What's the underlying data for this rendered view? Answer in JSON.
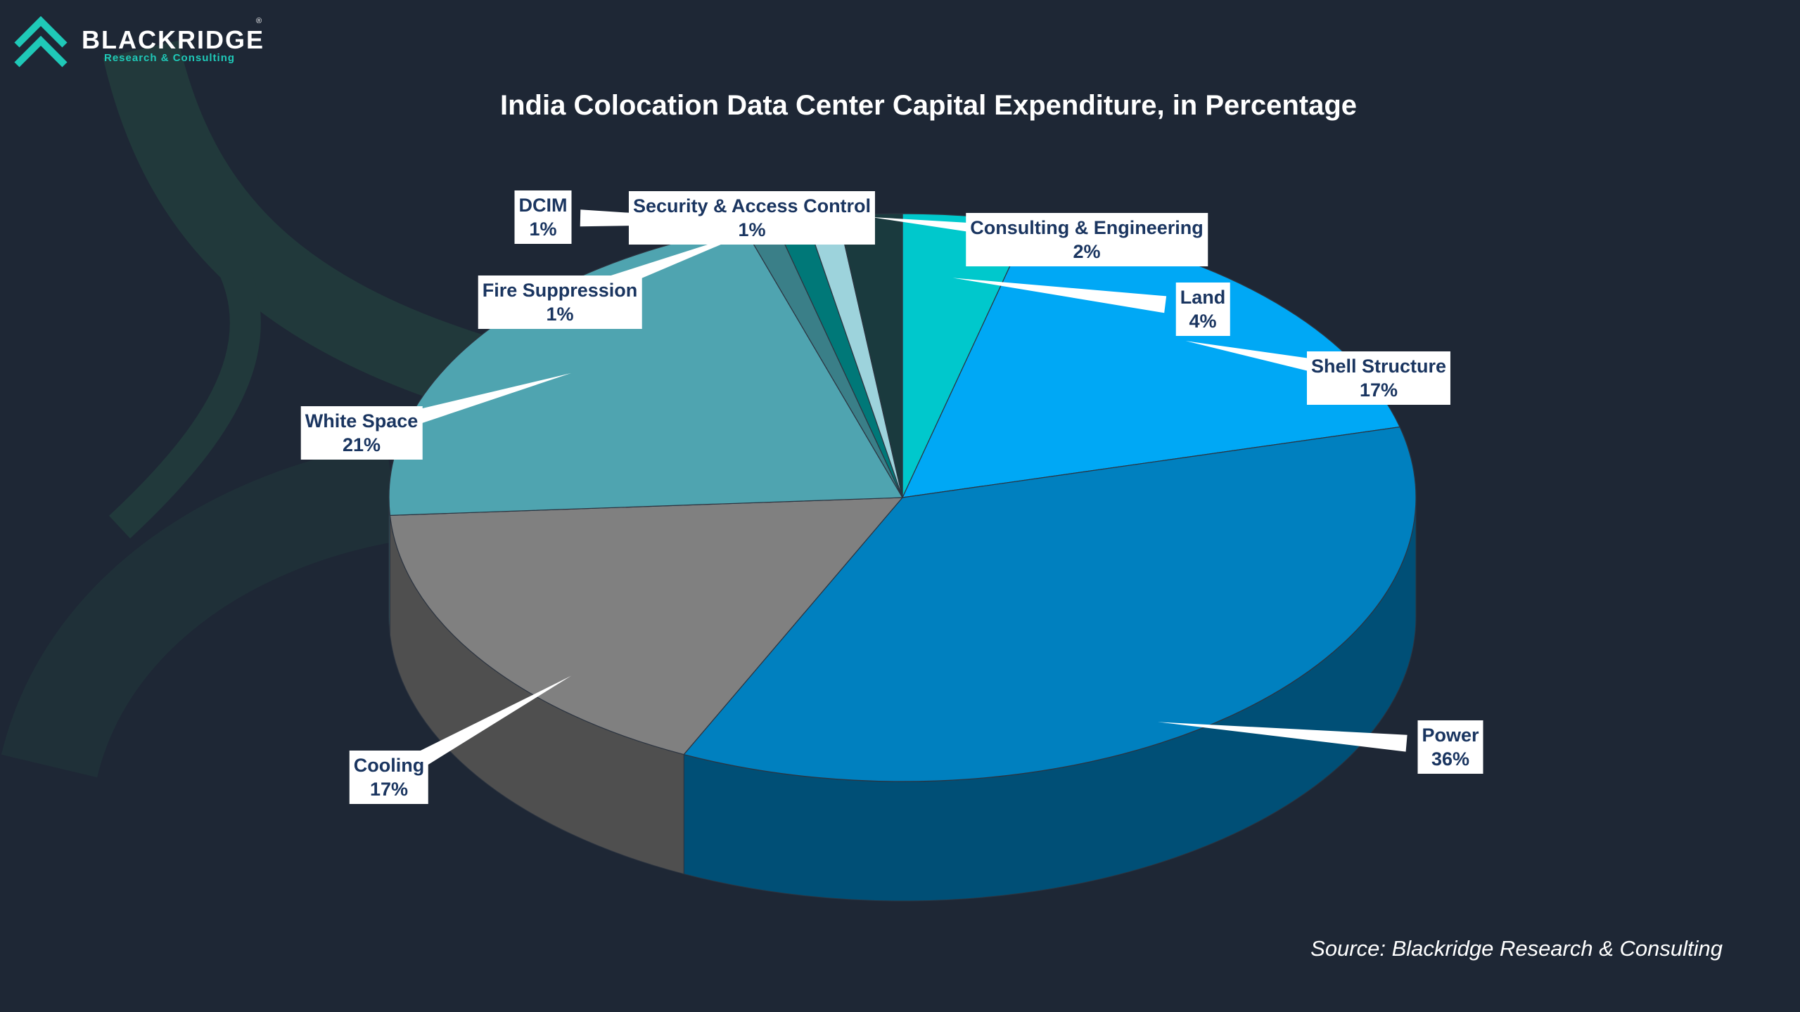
{
  "brand": {
    "name": "BLACKRIDGE",
    "registered": "®",
    "tagline": "Research & Consulting"
  },
  "source": "Source: Blackridge Research & Consulting",
  "chart_data": {
    "type": "pie",
    "title": "India Colocation Data Center Capital Expenditure, in Percentage",
    "style": "3d",
    "unit": "%",
    "slices": [
      {
        "label": "Land",
        "value": 4,
        "display": "4%",
        "color": "#00c8cc"
      },
      {
        "label": "Shell Structure",
        "value": 17,
        "display": "17%",
        "color": "#00a8f5"
      },
      {
        "label": "Power",
        "value": 36,
        "display": "36%",
        "color": "#0080bf"
      },
      {
        "label": "Cooling",
        "value": 17,
        "display": "17%",
        "color": "#808080"
      },
      {
        "label": "White Space",
        "value": 21,
        "display": "21%",
        "color": "#4fa4b0"
      },
      {
        "label": "Fire Suppression",
        "value": 1,
        "display": "1%",
        "color": "#3a7f88"
      },
      {
        "label": "DCIM",
        "value": 1,
        "display": "1%",
        "color": "#007878"
      },
      {
        "label": "Security & Access Control",
        "value": 1,
        "display": "1%",
        "color": "#9dd3dc"
      },
      {
        "label": "Consulting & Engineering",
        "value": 2,
        "display": "2%",
        "color": "#1a3a3e"
      }
    ]
  }
}
